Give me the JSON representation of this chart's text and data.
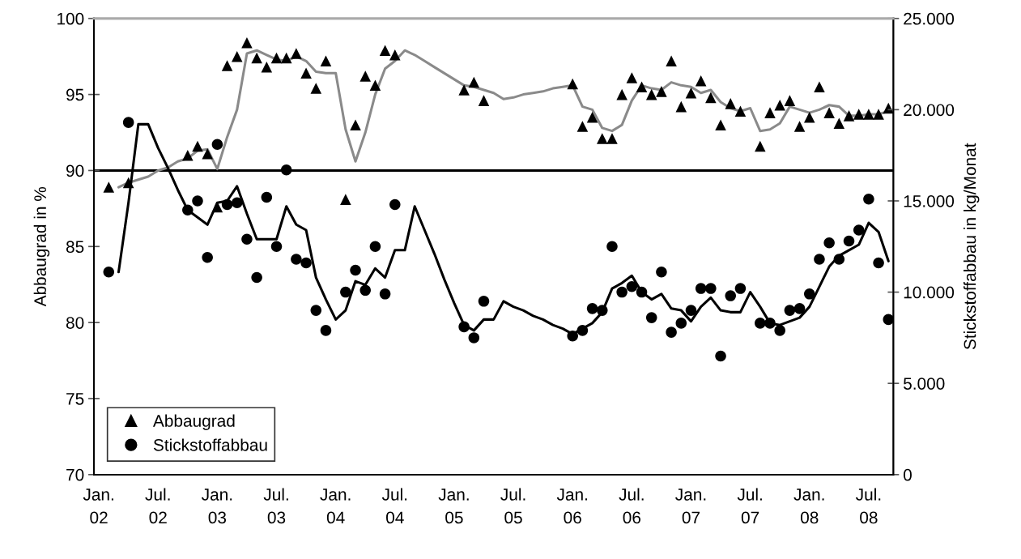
{
  "chart_data": {
    "type": "scatter",
    "ylabel": "Abbaugrad in %",
    "y2label": "Stickstoffabbau in kg/Monat",
    "categories": [
      "Jan.\n02",
      null,
      null,
      null,
      null,
      null,
      "Jul.\n02",
      null,
      null,
      null,
      null,
      null,
      "Jan.\n03",
      null,
      null,
      null,
      null,
      null,
      "Jul.\n03",
      null,
      null,
      null,
      null,
      null,
      "Jan.\n04",
      null,
      null,
      null,
      null,
      null,
      "Jul.\n04",
      null,
      null,
      null,
      null,
      null,
      "Jan.\n05",
      null,
      null,
      null,
      null,
      null,
      "Jul.\n05",
      null,
      null,
      null,
      null,
      null,
      "Jan.\n06",
      null,
      null,
      null,
      null,
      null,
      "Jul.\n06",
      null,
      null,
      null,
      null,
      null,
      "Jan.\n07",
      null,
      null,
      null,
      null,
      null,
      "Jul.\n07",
      null,
      null,
      null,
      null,
      null,
      "Jan.\n08",
      null,
      null,
      null,
      null,
      null,
      "Jul.\n08",
      null,
      null
    ],
    "series": [
      {
        "type": "line",
        "color": "#8a8a8a",
        "values": [
          null,
          null,
          88.9,
          89.2,
          89.4,
          89.6,
          90.0,
          90.2,
          90.6,
          90.8,
          91.3,
          91.4,
          90.1,
          92.2,
          94.0,
          97.7,
          97.9,
          97.6,
          97.3,
          97.2,
          97.5,
          97.2,
          96.5,
          96.4,
          96.4,
          92.7,
          90.6,
          92.5,
          95.0,
          96.7,
          97.2,
          97.9,
          97.6,
          97.2,
          96.8,
          96.4,
          96.0,
          95.6,
          95.5,
          95.3,
          95.1,
          94.7,
          94.8,
          95.0,
          95.1,
          95.2,
          95.4,
          95.5,
          95.6,
          94.2,
          94.0,
          92.8,
          92.6,
          93.0,
          94.6,
          95.6,
          95.4,
          95.3,
          95.8,
          95.6,
          95.5,
          95.1,
          95.3,
          94.5,
          94.1,
          93.9,
          94.1,
          92.6,
          92.7,
          93.1,
          94.2,
          94.0,
          93.8,
          94.0,
          94.3,
          94.2,
          93.6,
          93.6,
          93.7,
          93.7,
          93.9
        ]
      },
      {
        "type": "line",
        "axis": "y2",
        "color": "#000000",
        "values": [
          null,
          null,
          11100,
          14900,
          19200,
          19200,
          17900,
          16800,
          15600,
          14500,
          14100,
          13700,
          14900,
          15000,
          15800,
          14300,
          12900,
          12900,
          12900,
          14700,
          13700,
          13400,
          10800,
          9600,
          8500,
          9000,
          10600,
          10400,
          11300,
          10800,
          12300,
          12300,
          14700,
          13400,
          12100,
          10700,
          9400,
          8200,
          7900,
          8500,
          8500,
          9500,
          9200,
          9000,
          8700,
          8500,
          8200,
          8000,
          7700,
          8000,
          8300,
          8900,
          10200,
          10500,
          10900,
          10000,
          9600,
          9900,
          9100,
          9000,
          8400,
          9200,
          9700,
          9000,
          8900,
          8900,
          10000,
          9200,
          8300,
          8200,
          8400,
          8600,
          9200,
          10300,
          11400,
          12000,
          12300,
          12600,
          13800,
          13300,
          11700
        ]
      },
      {
        "name": "Abbaugrad",
        "marker": "triangle",
        "color": "#000000",
        "values": [
          null,
          88.9,
          null,
          89.2,
          null,
          null,
          null,
          null,
          null,
          91.0,
          91.6,
          91.1,
          87.6,
          96.9,
          97.5,
          98.4,
          97.4,
          96.8,
          97.4,
          97.4,
          97.7,
          96.4,
          95.4,
          97.2,
          null,
          88.1,
          93.0,
          96.2,
          95.6,
          97.9,
          97.6,
          null,
          null,
          null,
          null,
          null,
          null,
          95.3,
          95.8,
          94.6,
          null,
          null,
          null,
          null,
          null,
          null,
          null,
          null,
          95.7,
          92.9,
          93.5,
          92.1,
          92.1,
          95.0,
          96.1,
          95.5,
          95.0,
          95.2,
          97.2,
          94.2,
          95.1,
          95.9,
          94.8,
          93.0,
          94.4,
          93.9,
          null,
          91.6,
          93.8,
          94.3,
          94.6,
          92.9,
          93.5,
          95.5,
          93.8,
          93.1,
          93.6,
          93.7,
          93.7,
          93.7,
          94.1
        ]
      },
      {
        "name": "Stickstoffabbau",
        "marker": "circle",
        "axis": "y2",
        "color": "#000000",
        "values": [
          null,
          11100,
          null,
          19300,
          null,
          null,
          null,
          null,
          null,
          14500,
          15000,
          11900,
          18100,
          14800,
          14900,
          12900,
          10800,
          15200,
          12500,
          16700,
          11800,
          11600,
          9000,
          7900,
          null,
          10000,
          11200,
          10100,
          12500,
          9900,
          14800,
          null,
          null,
          null,
          null,
          null,
          null,
          8100,
          7500,
          9500,
          null,
          null,
          null,
          null,
          null,
          null,
          null,
          null,
          7600,
          7900,
          9100,
          9000,
          12500,
          10000,
          10300,
          10000,
          8600,
          11100,
          7800,
          8300,
          9000,
          10200,
          10200,
          6500,
          9800,
          10200,
          null,
          8300,
          8300,
          7900,
          9000,
          9100,
          9900,
          11800,
          12700,
          11800,
          12800,
          13400,
          15100,
          11600,
          8500
        ]
      }
    ],
    "ylim": [
      70,
      100
    ],
    "yticks": [
      70,
      75,
      80,
      85,
      90,
      95,
      100
    ],
    "y2lim": [
      0,
      25000
    ],
    "y2ticks": [
      0,
      {
        "value": 5000,
        "label": "5.000"
      },
      {
        "value": 10000,
        "label": "10.000"
      },
      {
        "value": 15000,
        "label": "15.000"
      },
      {
        "value": 20000,
        "label": "20.000"
      },
      {
        "value": 25000,
        "label": "25.000"
      }
    ],
    "ref_lines": [
      {
        "axis": "y",
        "value": 90,
        "color": "#000000"
      }
    ],
    "legend": "bottom left",
    "grid": false
  }
}
